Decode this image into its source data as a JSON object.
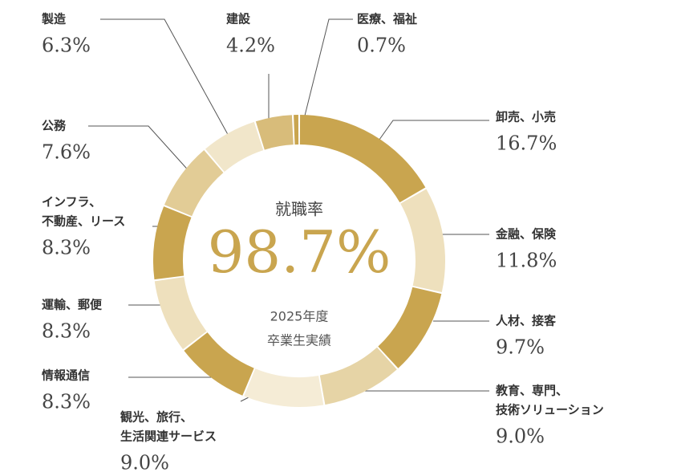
{
  "chart_data": {
    "type": "donut",
    "center": {
      "title": "就職率",
      "value": 98.7,
      "value_label": "98.7%",
      "subtitle": [
        "2025年度",
        "卒業生実績"
      ]
    },
    "segments": [
      {
        "name": [
          "卸売、小売"
        ],
        "value": 16.7,
        "value_label": "16.7%",
        "color": "#c9a54f"
      },
      {
        "name": [
          "金融、保険"
        ],
        "value": 11.8,
        "value_label": "11.8%",
        "color": "#eee0bd"
      },
      {
        "name": [
          "人材、接客"
        ],
        "value": 9.7,
        "value_label": "9.7%",
        "color": "#c9a54f"
      },
      {
        "name": [
          "教育、専門、",
          "技術ソリューション"
        ],
        "value": 9.0,
        "value_label": "9.0%",
        "color": "#e6d4a6"
      },
      {
        "name": [
          "観光、旅行、",
          "生活関連サービス"
        ],
        "value": 9.0,
        "value_label": "9.0%",
        "color": "#f5ecd6"
      },
      {
        "name": [
          "情報通信"
        ],
        "value": 8.3,
        "value_label": "8.3%",
        "color": "#c9a54f"
      },
      {
        "name": [
          "運輸、郵便"
        ],
        "value": 8.3,
        "value_label": "8.3%",
        "color": "#eee0bd"
      },
      {
        "name": [
          "インフラ、",
          "不動産、リース"
        ],
        "value": 8.3,
        "value_label": "8.3%",
        "color": "#c9a54f"
      },
      {
        "name": [
          "公務"
        ],
        "value": 7.6,
        "value_label": "7.6%",
        "color": "#e2cc96"
      },
      {
        "name": [
          "製造"
        ],
        "value": 6.3,
        "value_label": "6.3%",
        "color": "#f1e6ca"
      },
      {
        "name": [
          "建設"
        ],
        "value": 4.2,
        "value_label": "4.2%",
        "color": "#d8bc7a"
      },
      {
        "name": [
          "医療、福祉"
        ],
        "value": 0.7,
        "value_label": "0.7%",
        "color": "#c9a54f"
      }
    ]
  }
}
